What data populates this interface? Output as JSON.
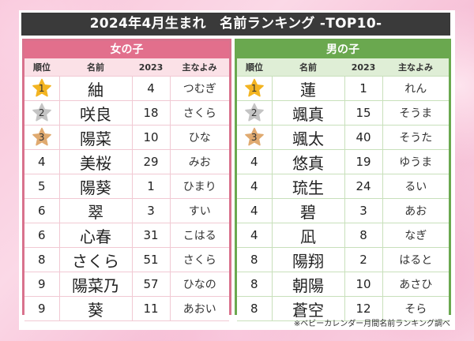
{
  "title": "2024年4月生まれ　名前ランキング -TOP10-",
  "columns": [
    "順位",
    "名前",
    "2023",
    "主なよみ"
  ],
  "colors": {
    "title_bg": "#3a3a3a",
    "girls_accent": "#e26f8c",
    "girls_border": "#d9728d",
    "boys_accent": "#6aa84f",
    "gold": "#f3b421",
    "silver": "#c4c4c4",
    "bronze": "#e0aa70"
  },
  "girls": {
    "label": "女の子",
    "rows": [
      {
        "rank": "1",
        "medal": "gold",
        "name": "紬",
        "prev": "4",
        "yomi": "つむぎ"
      },
      {
        "rank": "2",
        "medal": "silver",
        "name": "咲良",
        "prev": "18",
        "yomi": "さくら"
      },
      {
        "rank": "3",
        "medal": "bronze",
        "name": "陽菜",
        "prev": "10",
        "yomi": "ひな"
      },
      {
        "rank": "4",
        "medal": "",
        "name": "美桜",
        "prev": "29",
        "yomi": "みお"
      },
      {
        "rank": "5",
        "medal": "",
        "name": "陽葵",
        "prev": "1",
        "yomi": "ひまり"
      },
      {
        "rank": "6",
        "medal": "",
        "name": "翠",
        "prev": "3",
        "yomi": "すい"
      },
      {
        "rank": "6",
        "medal": "",
        "name": "心春",
        "prev": "31",
        "yomi": "こはる"
      },
      {
        "rank": "8",
        "medal": "",
        "name": "さくら",
        "prev": "51",
        "yomi": "さくら"
      },
      {
        "rank": "9",
        "medal": "",
        "name": "陽菜乃",
        "prev": "57",
        "yomi": "ひなの"
      },
      {
        "rank": "9",
        "medal": "",
        "name": "葵",
        "prev": "11",
        "yomi": "あおい"
      }
    ]
  },
  "boys": {
    "label": "男の子",
    "rows": [
      {
        "rank": "1",
        "medal": "gold",
        "name": "蓮",
        "prev": "1",
        "yomi": "れん"
      },
      {
        "rank": "2",
        "medal": "silver",
        "name": "颯真",
        "prev": "15",
        "yomi": "そうま"
      },
      {
        "rank": "3",
        "medal": "bronze",
        "name": "颯太",
        "prev": "40",
        "yomi": "そうた"
      },
      {
        "rank": "4",
        "medal": "",
        "name": "悠真",
        "prev": "19",
        "yomi": "ゆうま"
      },
      {
        "rank": "4",
        "medal": "",
        "name": "琉生",
        "prev": "24",
        "yomi": "るい"
      },
      {
        "rank": "4",
        "medal": "",
        "name": "碧",
        "prev": "3",
        "yomi": "あお"
      },
      {
        "rank": "4",
        "medal": "",
        "name": "凪",
        "prev": "8",
        "yomi": "なぎ"
      },
      {
        "rank": "8",
        "medal": "",
        "name": "陽翔",
        "prev": "2",
        "yomi": "はると"
      },
      {
        "rank": "8",
        "medal": "",
        "name": "朝陽",
        "prev": "10",
        "yomi": "あさひ"
      },
      {
        "rank": "8",
        "medal": "",
        "name": "蒼空",
        "prev": "12",
        "yomi": "そら"
      }
    ]
  },
  "footnote": "※ベビーカレンダー月間名前ランキング調べ"
}
